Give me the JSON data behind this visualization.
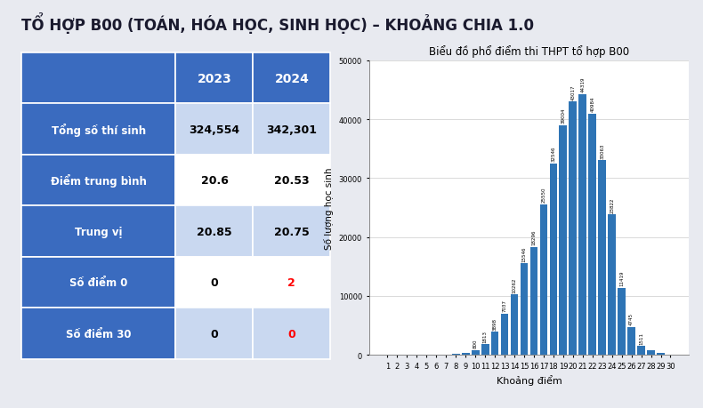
{
  "title_main": "TỔ HỢP B00 (TOÁN, HÓA HỌC, SINH HỌC) – KHOẢNG CHIA 1.0",
  "chart_title": "Biểu đồ phổ điểm thi THPT tổ hợp B00",
  "xlabel": "Khoảng điểm",
  "ylabel": "Số lượng học sinh",
  "bar_color": "#2E74B5",
  "background_color": "#E8EAF0",
  "chart_bg": "#FFFFFF",
  "categories": [
    1,
    2,
    3,
    4,
    5,
    6,
    7,
    8,
    9,
    10,
    11,
    12,
    13,
    14,
    15,
    16,
    17,
    18,
    19,
    20,
    21,
    22,
    23,
    24,
    25,
    26,
    27,
    28,
    29,
    30
  ],
  "values": [
    2,
    1,
    0,
    2,
    4,
    19,
    27,
    242,
    304,
    800,
    1813,
    3898,
    7037,
    10262,
    15546,
    18296,
    25550,
    32546,
    39004,
    43017,
    44319,
    40984,
    33063,
    23822,
    11419,
    4745,
    1511,
    797,
    259,
    16
  ],
  "table_rows": [
    {
      "label": "Tổng số thí sinh",
      "val2023": "324,554",
      "val2024": "342,301",
      "color2024": "black"
    },
    {
      "label": "Điểm trung bình",
      "val2023": "20.6",
      "val2024": "20.53",
      "color2024": "black"
    },
    {
      "label": "Trung vị",
      "val2023": "20.85",
      "val2024": "20.75",
      "color2024": "black"
    },
    {
      "label": "Số điểm 0",
      "val2023": "0",
      "val2024": "2",
      "color2024": "red"
    },
    {
      "label": "Số điểm 30",
      "val2023": "0",
      "val2024": "0",
      "color2024": "red"
    }
  ],
  "header_bg": "#3A6BBF",
  "row_label_bg": "#3A6BBF",
  "row_label_fg": "#FFFFFF",
  "row_even_bg": "#FFFFFF",
  "row_odd_bg": "#C9D8F0",
  "ylim": [
    0,
    50000
  ],
  "yticks": [
    0,
    10000,
    20000,
    30000,
    40000,
    50000
  ],
  "ytick_labels": [
    "0",
    "10000",
    "20000",
    "30000",
    "40000",
    "50000"
  ]
}
